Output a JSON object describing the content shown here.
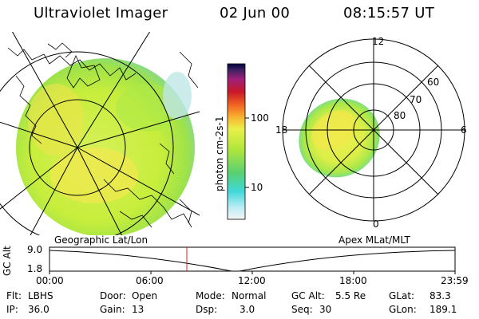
{
  "header": {
    "title": "Ultraviolet Imager",
    "date": "02 Jun 00",
    "time": "08:15:57 UT"
  },
  "colorbar": {
    "label": "photon cm-2s-1",
    "ticks": [
      "100",
      "10"
    ]
  },
  "polar_plot": {
    "lat_labels": [
      "80",
      "70",
      "60"
    ],
    "mlt_labels": [
      "12",
      "18",
      "6",
      "0"
    ]
  },
  "strip": {
    "left_title": "Geographic Lat/Lon",
    "right_title": "Apex MLat/MLT",
    "ylabel": "GC Alt",
    "ytick_top": "9.0",
    "ytick_bottom": "1.8",
    "xticks": [
      "00:00",
      "06:00",
      "12:00",
      "18:00",
      "23:59"
    ],
    "current_marker_time": "08:15:57"
  },
  "info": {
    "col1": [
      {
        "key": "Flt:",
        "value": "LBHS"
      },
      {
        "key": "IP:",
        "value": "36.0"
      }
    ],
    "col2": [
      {
        "key": "Door:",
        "value": "Open"
      },
      {
        "key": "Gain:",
        "value": "13"
      }
    ],
    "col3": [
      {
        "key": "Mode:",
        "value": "Normal"
      },
      {
        "key": "Dsp:",
        "value": "3.0"
      }
    ],
    "col4": [
      {
        "key": "GC Alt:",
        "value": "5.5 Re"
      },
      {
        "key": "Seq:",
        "value": "30"
      }
    ],
    "col5": [
      {
        "key": "GLat:",
        "value": "83.3"
      },
      {
        "key": "GLon:",
        "value": "189.1"
      }
    ]
  }
}
